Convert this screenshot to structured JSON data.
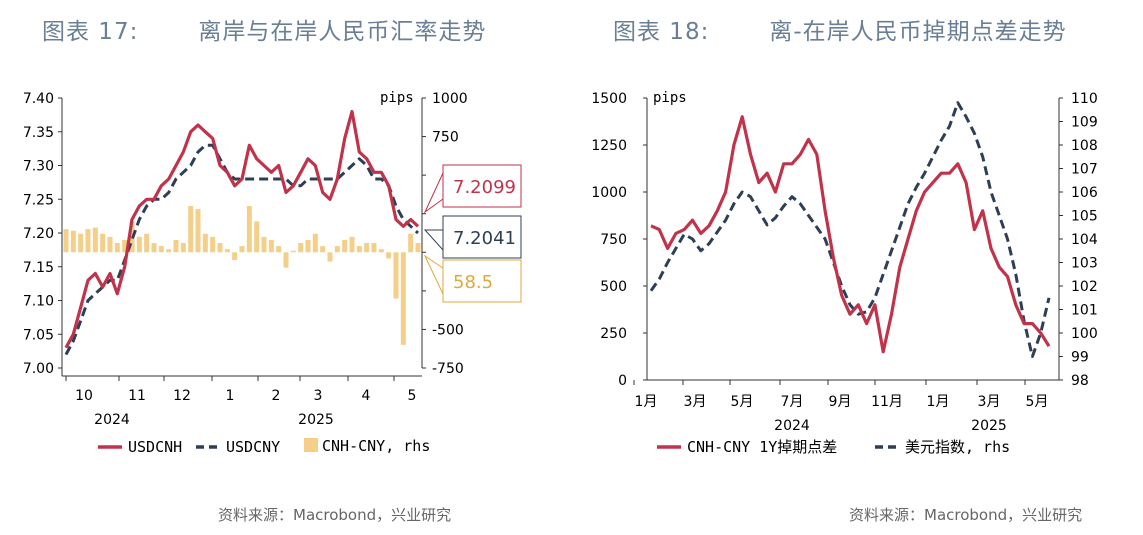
{
  "left": {
    "figure_label": "图表 17:",
    "title": "离岸与在岸人民币汇率走势",
    "source": "资料来源：Macrobond，兴业研究",
    "unit_right": "pips",
    "callouts": [
      {
        "label": "7.2099",
        "color": "#c0334a"
      },
      {
        "label": "7.2041",
        "color": "#2e3f55"
      },
      {
        "label": "58.5",
        "color": "#e0a93b"
      }
    ],
    "legend": [
      {
        "label": "USDCNH",
        "color": "#c0334a",
        "style": "solid"
      },
      {
        "label": "USDCNY",
        "color": "#2e3f55",
        "style": "dashed"
      },
      {
        "label": "CNH-CNY, rhs",
        "color": "#f3cf8a",
        "style": "bar"
      }
    ]
  },
  "right": {
    "figure_label": "图表 18:",
    "title": "离-在岸人民币掉期点差走势",
    "source": "资料来源：Macrobond，兴业研究",
    "unit_left": "pips",
    "legend": [
      {
        "label": "CNH-CNY 1Y掉期点差",
        "color": "#c0334a",
        "style": "solid"
      },
      {
        "label": "美元指数, rhs",
        "color": "#2e3f55",
        "style": "dashed"
      }
    ]
  },
  "chart_data": [
    {
      "type": "line",
      "title": "离岸与在岸人民币汇率走势",
      "x_tick_labels": [
        "10",
        "11",
        "12",
        "1",
        "2",
        "3",
        "4",
        "5"
      ],
      "x_year_labels": [
        "2024",
        "2025"
      ],
      "y_left": {
        "ticks": [
          "7.40",
          "7.35",
          "7.30",
          "7.25",
          "7.20",
          "7.15",
          "7.10",
          "7.05",
          "7.00"
        ],
        "range": [
          7.0,
          7.4
        ]
      },
      "y_right": {
        "ticks": [
          "1000",
          "750",
          "",
          "",
          "",
          "",
          "-500",
          "-750"
        ],
        "range": [
          -750,
          1000
        ],
        "label": "pips"
      },
      "grid": false,
      "legend_position": "bottom",
      "series": [
        {
          "name": "USDCNH",
          "axis": "left",
          "color": "#c0334a",
          "style": "solid",
          "values": [
            7.03,
            7.05,
            7.09,
            7.13,
            7.14,
            7.12,
            7.14,
            7.11,
            7.15,
            7.22,
            7.24,
            7.25,
            7.25,
            7.27,
            7.28,
            7.3,
            7.32,
            7.35,
            7.36,
            7.35,
            7.34,
            7.3,
            7.29,
            7.27,
            7.28,
            7.33,
            7.31,
            7.3,
            7.29,
            7.3,
            7.26,
            7.27,
            7.29,
            7.31,
            7.3,
            7.26,
            7.25,
            7.28,
            7.34,
            7.38,
            7.32,
            7.31,
            7.29,
            7.29,
            7.27,
            7.22,
            7.21,
            7.22,
            7.21
          ]
        },
        {
          "name": "USDCNY",
          "axis": "left",
          "color": "#2e3f55",
          "style": "dashed",
          "values": [
            7.02,
            7.04,
            7.07,
            7.1,
            7.11,
            7.12,
            7.13,
            7.13,
            7.16,
            7.19,
            7.22,
            7.24,
            7.25,
            7.25,
            7.26,
            7.28,
            7.29,
            7.3,
            7.32,
            7.33,
            7.33,
            7.31,
            7.29,
            7.28,
            7.28,
            7.28,
            7.28,
            7.28,
            7.28,
            7.28,
            7.28,
            7.27,
            7.27,
            7.28,
            7.28,
            7.28,
            7.28,
            7.28,
            7.29,
            7.3,
            7.31,
            7.3,
            7.28,
            7.28,
            7.27,
            7.24,
            7.22,
            7.21,
            7.2
          ]
        },
        {
          "name": "CNH-CNY, rhs",
          "axis": "right",
          "type": "bar",
          "color": "#f3cf8a",
          "values": [
            150,
            140,
            120,
            150,
            160,
            120,
            100,
            60,
            80,
            200,
            100,
            120,
            60,
            40,
            20,
            80,
            60,
            300,
            280,
            120,
            100,
            60,
            20,
            -50,
            40,
            300,
            200,
            100,
            80,
            40,
            -100,
            10,
            60,
            80,
            120,
            40,
            -60,
            40,
            80,
            100,
            40,
            60,
            60,
            20,
            -40,
            -300,
            -600,
            120,
            60
          ]
        }
      ]
    },
    {
      "type": "line",
      "title": "离-在岸人民币掉期点差走势",
      "x_tick_labels": [
        "1月",
        "3月",
        "5月",
        "7月",
        "9月",
        "11月",
        "1月",
        "3月",
        "5月"
      ],
      "x_year_labels": [
        "2024",
        "2025"
      ],
      "y_left": {
        "ticks": [
          "1500",
          "1250",
          "1000",
          "750",
          "500",
          "250",
          "0"
        ],
        "range": [
          0,
          1500
        ],
        "label": "pips"
      },
      "y_right": {
        "ticks": [
          "110",
          "109",
          "108",
          "107",
          "106",
          "105",
          "104",
          "103",
          "102",
          "101",
          "100",
          "99",
          "98"
        ],
        "range": [
          98,
          110
        ]
      },
      "grid": false,
      "legend_position": "bottom",
      "series": [
        {
          "name": "CNH-CNY 1Y掉期点差",
          "axis": "left",
          "color": "#c0334a",
          "style": "solid",
          "values": [
            820,
            800,
            700,
            780,
            800,
            850,
            780,
            820,
            900,
            1000,
            1250,
            1400,
            1200,
            1050,
            1100,
            1000,
            1150,
            1150,
            1200,
            1280,
            1200,
            900,
            650,
            450,
            350,
            400,
            300,
            400,
            150,
            350,
            600,
            750,
            900,
            1000,
            1050,
            1100,
            1100,
            1150,
            1050,
            800,
            900,
            700,
            600,
            550,
            400,
            300,
            300,
            250,
            180
          ]
        },
        {
          "name": "美元指数, rhs",
          "axis": "right",
          "color": "#2e3f55",
          "style": "dashed",
          "values": [
            101.8,
            102.3,
            103.0,
            103.6,
            104.2,
            104.0,
            103.5,
            103.8,
            104.3,
            104.8,
            105.5,
            106.0,
            105.8,
            105.2,
            104.6,
            104.9,
            105.4,
            105.8,
            105.5,
            105.0,
            104.5,
            104.0,
            103.0,
            102.0,
            101.2,
            100.8,
            100.9,
            101.5,
            102.5,
            103.5,
            104.5,
            105.5,
            106.2,
            106.8,
            107.5,
            108.2,
            108.8,
            109.8,
            109.2,
            108.5,
            107.5,
            106.0,
            105.0,
            104.0,
            102.5,
            100.5,
            99.0,
            100.0,
            101.5
          ]
        }
      ]
    }
  ]
}
